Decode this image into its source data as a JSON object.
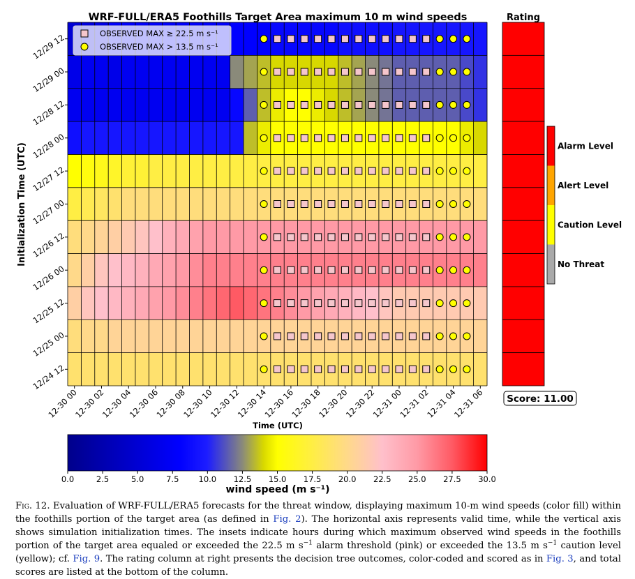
{
  "chart_data": [
    {
      "type": "heatmap",
      "title": "WRF-FULL/ERA5 Foothills Target Area maximum 10 m wind speeds",
      "xlabel": "Time (UTC)",
      "ylabel": "Initialization Time (UTC)",
      "x_tick_labels": [
        "12-30 00",
        "12-30 02",
        "12-30 04",
        "12-30 06",
        "12-30 08",
        "12-30 10",
        "12-30 12",
        "12-30 14",
        "12-30 16",
        "12-30 18",
        "12-30 20",
        "12-30 22",
        "12-31 00",
        "12-31 02",
        "12-31 04",
        "12-31 06"
      ],
      "valid_hours": [
        "12-30 00",
        "12-30 01",
        "12-30 02",
        "12-30 03",
        "12-30 04",
        "12-30 05",
        "12-30 06",
        "12-30 07",
        "12-30 08",
        "12-30 09",
        "12-30 10",
        "12-30 11",
        "12-30 12",
        "12-30 13",
        "12-30 14",
        "12-30 15",
        "12-30 16",
        "12-30 17",
        "12-30 18",
        "12-30 19",
        "12-30 20",
        "12-30 21",
        "12-30 22",
        "12-30 23",
        "12-31 00",
        "12-31 01",
        "12-31 02",
        "12-31 03",
        "12-31 04",
        "12-31 05",
        "12-31 06"
      ],
      "init_times": [
        "12/29 12",
        "12/29 00",
        "12/28 12",
        "12/28 00",
        "12/27 12",
        "12/27 00",
        "12/26 12",
        "12/26 00",
        "12/25 12",
        "12/25 00",
        "12/24 12"
      ],
      "values": [
        [
          5.0,
          5.5,
          6.0,
          7.5,
          7.5,
          7.5,
          7.5,
          7.5,
          7.5,
          7.5,
          7.5,
          7.5,
          8.0,
          8.0,
          8.0,
          8.5,
          8.5,
          8.5,
          8.5,
          8.5,
          9.0,
          9.0,
          9.0,
          9.0,
          9.5,
          9.5,
          9.5,
          9.5,
          9.5,
          9.5,
          9.5
        ],
        [
          6.5,
          7.0,
          7.0,
          6.5,
          7.0,
          7.0,
          7.0,
          7.0,
          7.0,
          7.0,
          7.0,
          7.0,
          12.5,
          13.0,
          13.5,
          14.0,
          14.0,
          14.0,
          14.0,
          14.0,
          13.5,
          13.0,
          12.5,
          12.0,
          11.5,
          11.5,
          11.5,
          11.5,
          11.5,
          11.0,
          10.5
        ],
        [
          7.0,
          7.0,
          7.0,
          7.0,
          7.0,
          7.0,
          7.0,
          7.0,
          7.0,
          7.0,
          7.0,
          7.0,
          8.5,
          11.5,
          13.5,
          14.5,
          15.0,
          15.0,
          14.5,
          14.0,
          13.5,
          13.0,
          12.5,
          12.0,
          11.5,
          11.5,
          11.5,
          11.5,
          11.5,
          11.0,
          10.5
        ],
        [
          9.0,
          9.5,
          9.5,
          9.5,
          9.5,
          9.5,
          9.5,
          9.5,
          9.5,
          9.5,
          9.5,
          9.5,
          9.5,
          13.5,
          14.5,
          15.0,
          15.0,
          15.0,
          15.0,
          15.0,
          15.0,
          15.0,
          15.0,
          15.0,
          15.0,
          15.0,
          15.0,
          15.0,
          15.0,
          14.5,
          14.0
        ],
        [
          15.0,
          15.5,
          16.0,
          16.5,
          17.0,
          17.0,
          17.5,
          17.5,
          17.5,
          17.5,
          17.5,
          17.5,
          17.5,
          17.5,
          17.5,
          17.5,
          17.5,
          17.5,
          17.5,
          17.5,
          17.5,
          17.5,
          17.5,
          17.5,
          17.5,
          17.5,
          17.5,
          17.5,
          17.5,
          17.5,
          17.5
        ],
        [
          17.5,
          18.0,
          18.5,
          19.0,
          19.5,
          19.5,
          19.5,
          19.5,
          19.5,
          19.5,
          19.5,
          19.5,
          19.5,
          19.5,
          19.5,
          19.5,
          19.5,
          19.5,
          19.5,
          19.5,
          19.5,
          19.5,
          19.5,
          19.5,
          19.5,
          19.5,
          19.5,
          19.5,
          19.5,
          19.5,
          19.5
        ],
        [
          19.5,
          20.0,
          20.5,
          21.0,
          21.5,
          22.0,
          22.5,
          23.5,
          24.0,
          24.5,
          25.0,
          25.0,
          25.0,
          25.0,
          25.0,
          25.0,
          25.0,
          25.0,
          25.0,
          25.0,
          25.0,
          25.0,
          25.0,
          25.0,
          25.0,
          25.0,
          25.0,
          25.0,
          25.0,
          25.0,
          25.0
        ],
        [
          20.0,
          21.0,
          22.0,
          22.5,
          23.0,
          23.5,
          24.0,
          24.5,
          25.0,
          25.5,
          26.0,
          26.0,
          26.0,
          26.0,
          26.0,
          26.0,
          26.0,
          26.0,
          26.0,
          26.0,
          26.0,
          26.0,
          26.0,
          26.0,
          26.0,
          26.0,
          26.0,
          26.0,
          26.0,
          26.0,
          26.0
        ],
        [
          21.0,
          22.0,
          22.5,
          23.0,
          23.5,
          24.0,
          24.5,
          25.0,
          25.5,
          26.0,
          26.5,
          27.0,
          27.5,
          27.0,
          26.5,
          26.0,
          25.5,
          25.0,
          24.5,
          24.0,
          23.5,
          23.0,
          22.5,
          22.0,
          21.5,
          21.5,
          21.5,
          21.5,
          21.5,
          21.5,
          21.5
        ],
        [
          19.5,
          20.0,
          20.0,
          20.5,
          20.5,
          20.5,
          20.5,
          20.5,
          20.5,
          20.5,
          20.5,
          20.5,
          20.5,
          20.5,
          20.5,
          20.5,
          20.5,
          20.5,
          20.5,
          20.5,
          20.5,
          20.5,
          20.5,
          20.5,
          20.5,
          20.5,
          20.5,
          20.5,
          20.5,
          20.5,
          20.5
        ],
        [
          19.0,
          19.0,
          19.0,
          19.0,
          19.0,
          19.0,
          19.0,
          19.0,
          19.0,
          19.0,
          19.0,
          19.0,
          19.0,
          19.0,
          19.0,
          19.0,
          19.0,
          19.0,
          19.0,
          19.0,
          19.0,
          19.0,
          19.0,
          19.0,
          19.0,
          19.0,
          19.0,
          19.0,
          19.0,
          19.0,
          19.0
        ]
      ],
      "observed_markers": [
        "circle",
        "square",
        "square",
        "square",
        "square",
        "square",
        "square",
        "square",
        "square",
        "square",
        "square",
        "square",
        "square",
        "circle",
        "circle",
        "circle"
      ],
      "legend_entries": [
        {
          "symbol": "square",
          "color": "#f5c6cc",
          "label": "OBSERVED MAX  ≥ 22.5 m s⁻¹"
        },
        {
          "symbol": "circle",
          "color": "#ffff00",
          "label": "OBSERVED MAX  > 13.5 m s⁻¹"
        }
      ],
      "legend_position": "top-left",
      "grid": true
    },
    {
      "type": "table",
      "title": "Rating",
      "rows": 11,
      "levels": [
        "Alarm Level",
        "Alarm Level",
        "Alarm Level",
        "Alarm Level",
        "Alarm Level",
        "Alarm Level",
        "Alarm Level",
        "Alarm Level",
        "Alarm Level",
        "Alarm Level",
        "Alarm Level"
      ],
      "score_text": "Score: 11.00"
    }
  ],
  "colorbar": {
    "label": "wind speed (m s⁻¹)",
    "range": [
      0,
      30
    ],
    "ticks": [
      "0.0",
      "2.5",
      "5.0",
      "7.5",
      "10.0",
      "12.5",
      "15.0",
      "17.5",
      "20.0",
      "22.5",
      "25.0",
      "27.5",
      "30.0"
    ],
    "stops": [
      {
        "value": 0,
        "color": "#00008b"
      },
      {
        "value": 8,
        "color": "#0000ff"
      },
      {
        "value": 10,
        "color": "#1d1dff"
      },
      {
        "value": 12.5,
        "color": "#8a8a7a"
      },
      {
        "value": 14,
        "color": "#d8d800"
      },
      {
        "value": 15,
        "color": "#ffff00"
      },
      {
        "value": 17.5,
        "color": "#ffee44"
      },
      {
        "value": 20,
        "color": "#ffd98a"
      },
      {
        "value": 22.5,
        "color": "#ffc0cb"
      },
      {
        "value": 25,
        "color": "#ff9aa6"
      },
      {
        "value": 27.5,
        "color": "#ff5a64"
      },
      {
        "value": 30,
        "color": "#ff0000"
      }
    ]
  },
  "threat_legend": [
    {
      "label": "Alarm Level",
      "color": "#ff0000"
    },
    {
      "label": "Alert Level",
      "color": "#ffa500"
    },
    {
      "label": "Caution Level",
      "color": "#ffff00"
    },
    {
      "label": "No Threat",
      "color": "#a9a9a9"
    }
  ],
  "caption": {
    "fig_label": "Fig. 12.",
    "p1": " Evaluation of WRF-FULL/ERA5 forecasts for the threat window, displaying maximum 10-m wind speeds (color fill) within the foothills portion of the target area (as defined in ",
    "ref_fig2": "Fig. 2",
    "p2": "). The horizontal axis represents valid time, while the vertical axis shows simulation initialization times. The insets indicate hours during which maximum observed wind speeds in the foothills portion of the target area equaled or exceeded the 22.5 m s",
    "sup1": "−1",
    "p3": " alarm threshold (pink) or exceeded the 13.5 m s",
    "sup2": "−1",
    "p4": " caution level (yellow); cf. ",
    "ref_fig9": "Fig. 9",
    "p5": ". The rating column at right presents the decision tree outcomes, color-coded and scored as in ",
    "ref_fig3": "Fig. 3",
    "p6": ", and total scores are listed at the bottom of the column."
  }
}
